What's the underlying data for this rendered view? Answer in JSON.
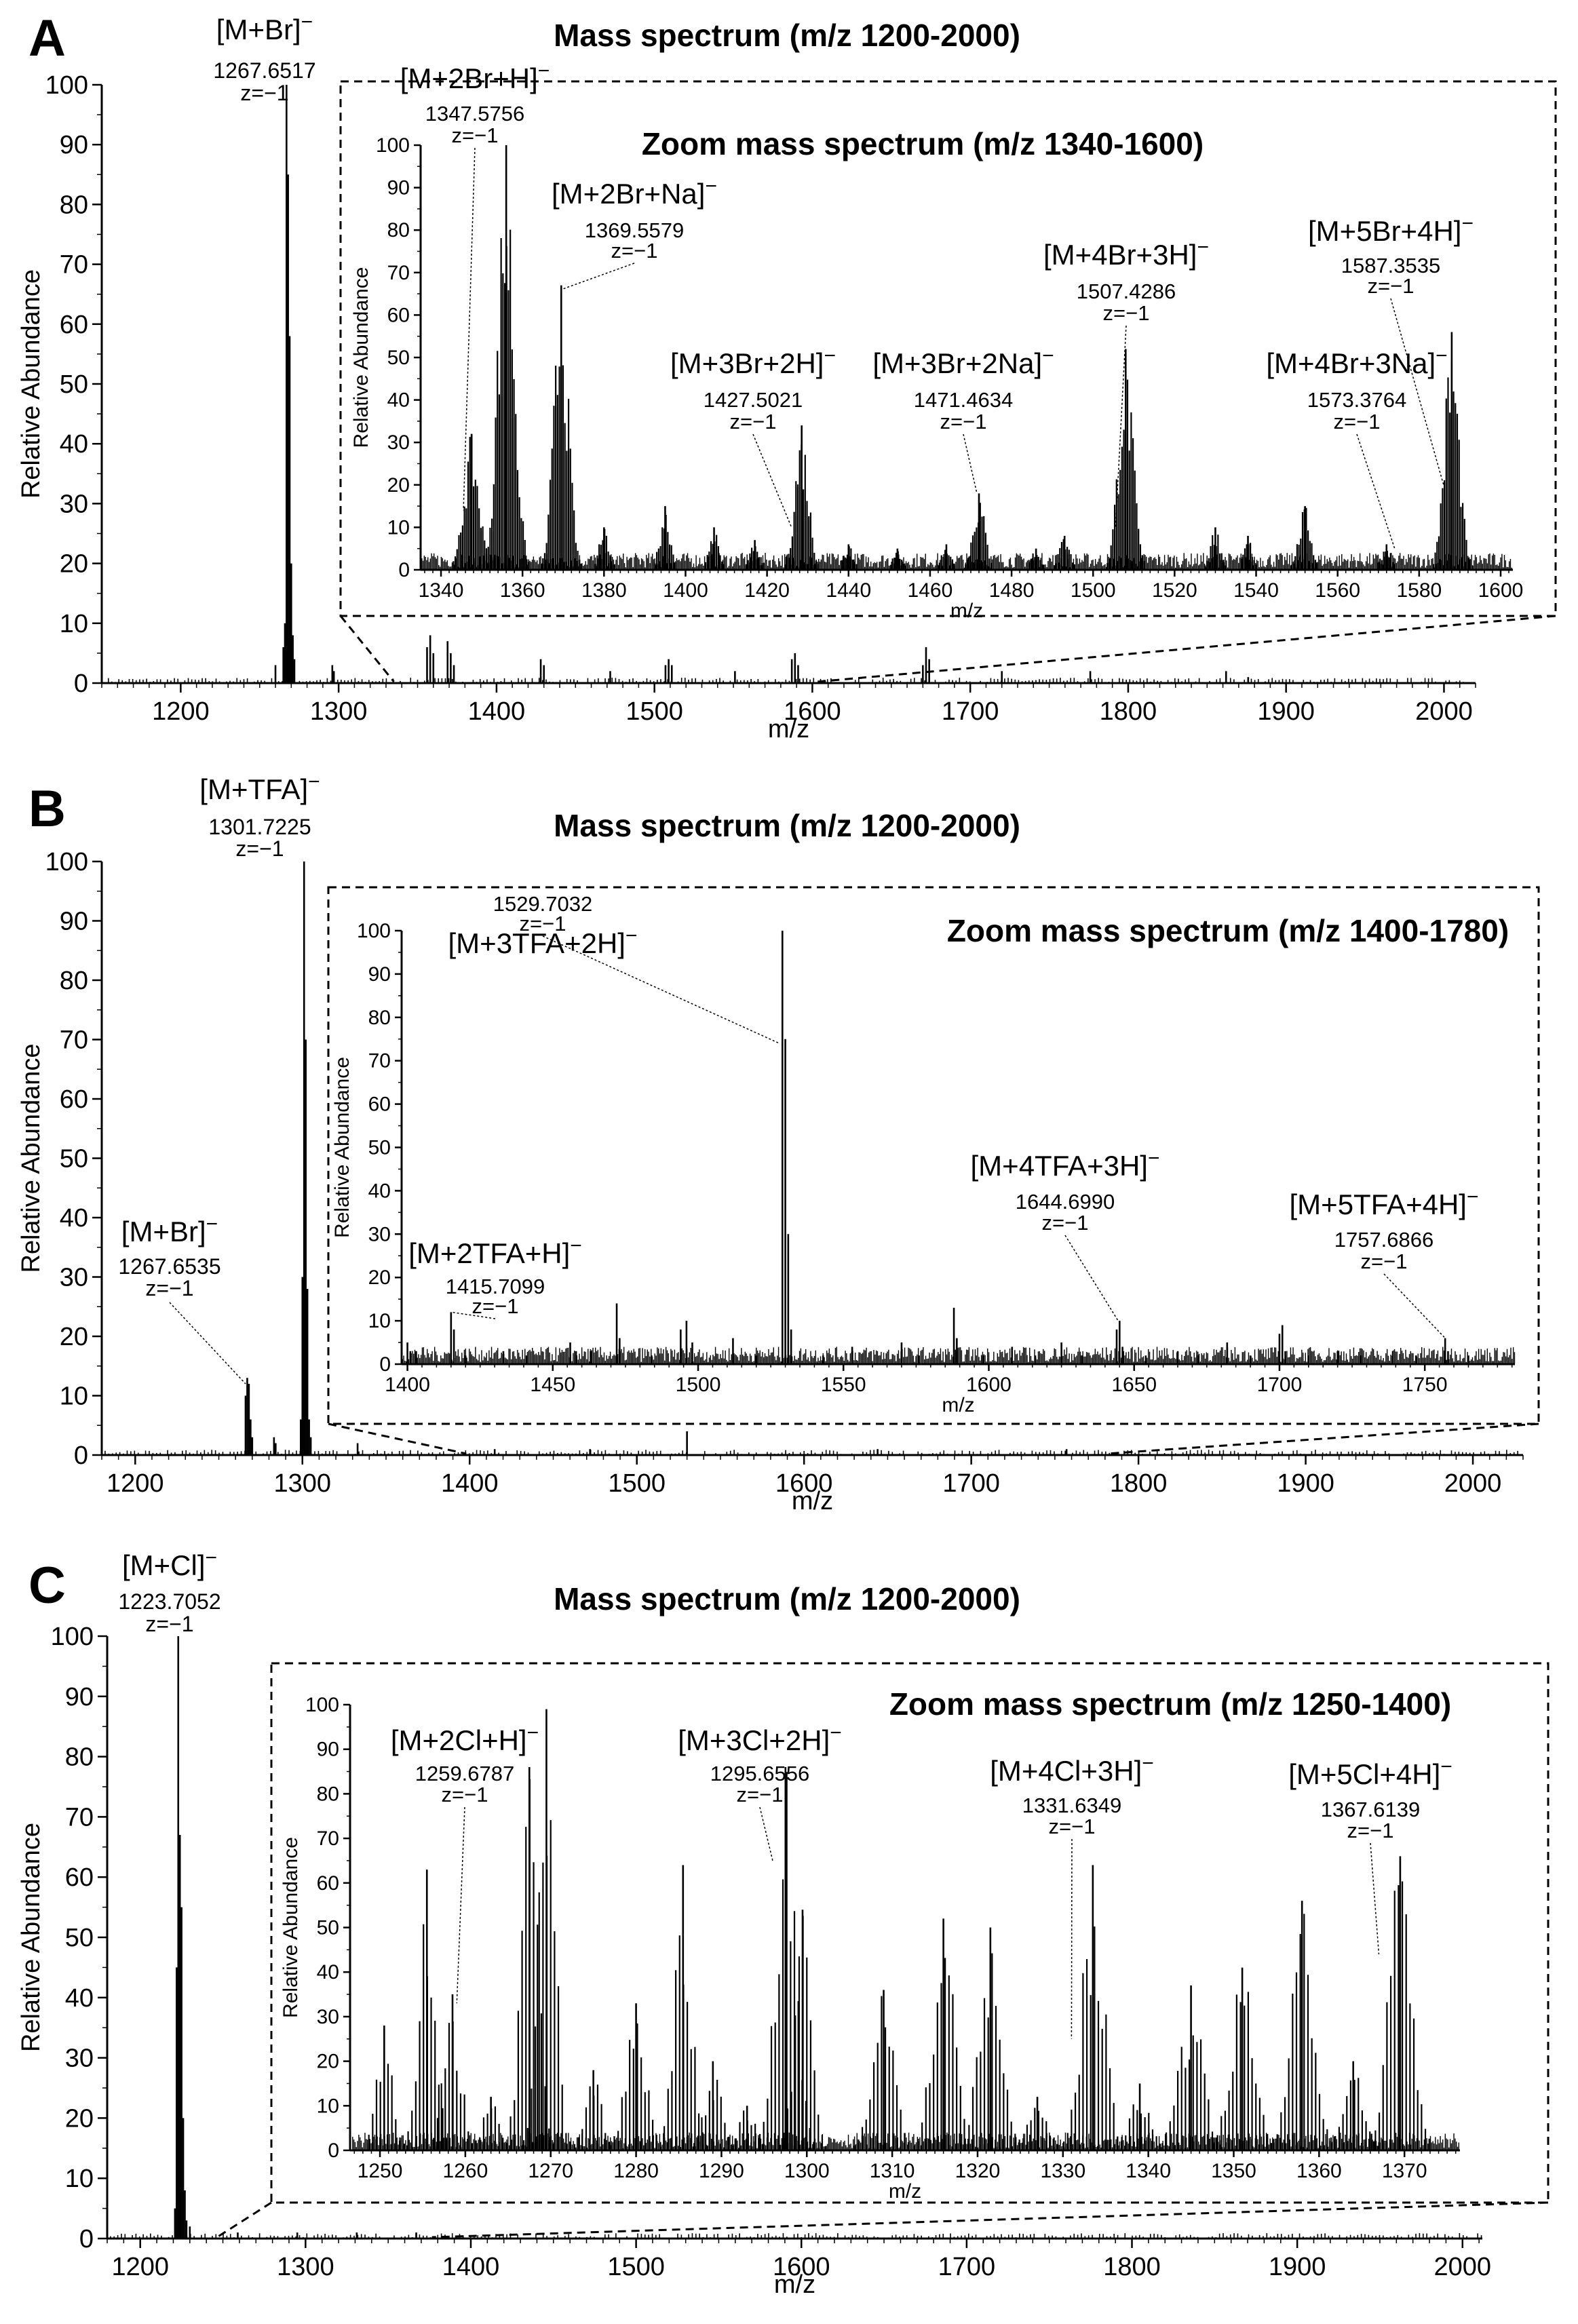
{
  "panels": [
    {
      "letter": "A",
      "chart_data": {
        "type": "line",
        "title": "Mass spectrum (m/z 1200-2000)",
        "xlabel": "m/z",
        "ylabel": "Relative Abundance",
        "xlim": [
          1150,
          2020
        ],
        "ylim": [
          0,
          100
        ],
        "xticks": [
          1200,
          1300,
          1400,
          1500,
          1600,
          1700,
          1800,
          1900,
          2000
        ],
        "yticks": [
          0,
          10,
          20,
          30,
          40,
          50,
          60,
          70,
          80,
          90,
          100
        ],
        "peaks": [
          [
            1260,
            3
          ],
          [
            1265,
            6
          ],
          [
            1266,
            10
          ],
          [
            1267,
            100
          ],
          [
            1268,
            85
          ],
          [
            1269,
            58
          ],
          [
            1270,
            20
          ],
          [
            1271,
            8
          ],
          [
            1272,
            4
          ],
          [
            1296,
            3
          ],
          [
            1297,
            2
          ],
          [
            1356,
            6
          ],
          [
            1358,
            8
          ],
          [
            1360,
            5
          ],
          [
            1369,
            7
          ],
          [
            1371,
            5
          ],
          [
            1373,
            3
          ],
          [
            1428,
            4
          ],
          [
            1430,
            3
          ],
          [
            1472,
            2
          ],
          [
            1507,
            3
          ],
          [
            1509,
            4
          ],
          [
            1511,
            3
          ],
          [
            1551,
            2
          ],
          [
            1587,
            4
          ],
          [
            1589,
            5
          ],
          [
            1591,
            3
          ],
          [
            1670,
            3
          ],
          [
            1672,
            6
          ],
          [
            1674,
            4
          ],
          [
            1720,
            2
          ],
          [
            1776,
            2
          ],
          [
            1862,
            2
          ],
          [
            1876,
            1
          ]
        ],
        "annotations": [
          {
            "ion": "[M+Br]",
            "mz": "1267.6517",
            "z": "z=−1",
            "peak": [
              1267,
              100
            ]
          }
        ],
        "zoom": {
          "title": "Zoom mass spectrum (m/z 1340-1600)",
          "xlabel": "m/z",
          "ylabel": "Relative Abundance",
          "xlim": [
            1335,
            1603
          ],
          "ylim": [
            0,
            100
          ],
          "xticks": [
            1340,
            1360,
            1380,
            1400,
            1420,
            1440,
            1460,
            1480,
            1500,
            1520,
            1540,
            1560,
            1580,
            1600
          ],
          "yticks": [
            0,
            10,
            20,
            30,
            40,
            50,
            60,
            70,
            80,
            90,
            100
          ],
          "clusters": [
            [
              1347.5,
              32,
              1.9
            ],
            [
              1356,
              100,
              2.0
            ],
            [
              1369.5,
              67,
              1.8
            ],
            [
              1428.5,
              34,
              1.7
            ],
            [
              1472,
              18,
              1.5
            ],
            [
              1508,
              52,
              1.8
            ],
            [
              1552,
              15,
              1.5
            ],
            [
              1588,
              56,
              1.8
            ],
            [
              1395,
              15,
              1.3
            ],
            [
              1407,
              10,
              1.2
            ],
            [
              1380,
              10,
              1.2
            ],
            [
              1417,
              7,
              1.2
            ],
            [
              1464,
              6,
              1.2
            ],
            [
              1493,
              8,
              1.3
            ],
            [
              1530,
              10,
              1.3
            ],
            [
              1572,
              6,
              1.3
            ],
            [
              1440,
              6,
              1.2
            ],
            [
              1452,
              5,
              1.2
            ],
            [
              1486,
              5,
              1.2
            ],
            [
              1538,
              8,
              1.2
            ]
          ],
          "annotations": [
            {
              "ion": "[M+2Br+H]",
              "mz": "1347.5756",
              "z": "z=−1",
              "peak": [
                1345.5,
                14
              ]
            },
            {
              "ion": "[M+2Br+Na]",
              "mz": "1369.5579",
              "z": "z=−1",
              "peak": [
                1369.5,
                66
              ]
            },
            {
              "ion": "[M+3Br+2H]",
              "mz": "1427.5021",
              "z": "z=−1",
              "peak": [
                1426,
                10
              ]
            },
            {
              "ion": "[M+3Br+2Na]",
              "mz": "1471.4634",
              "z": "z=−1",
              "peak": [
                1471.5,
                18
              ]
            },
            {
              "ion": "[M+4Br+3H]",
              "mz": "1507.4286",
              "z": "z=−1",
              "peak": [
                1505.5,
                10
              ]
            },
            {
              "ion": "[M+4Br+3Na]",
              "mz": "1573.3764",
              "z": "z=−1",
              "peak": [
                1574,
                5
              ]
            },
            {
              "ion": "[M+5Br+4H]",
              "mz": "1587.3535",
              "z": "z=−1",
              "peak": [
                1586,
                20
              ]
            }
          ]
        }
      }
    },
    {
      "letter": "B",
      "chart_data": {
        "type": "line",
        "title": "Mass spectrum (m/z 1200-2000)",
        "xlabel": "m/z",
        "ylabel": "Relative Abundance",
        "xlim": [
          1180,
          2030
        ],
        "ylim": [
          0,
          100
        ],
        "xticks": [
          1200,
          1300,
          1400,
          1500,
          1600,
          1700,
          1800,
          1900,
          2000
        ],
        "yticks": [
          0,
          10,
          20,
          30,
          40,
          50,
          60,
          70,
          80,
          90,
          100
        ],
        "peaks": [
          [
            1266,
            10
          ],
          [
            1267,
            13
          ],
          [
            1268,
            12
          ],
          [
            1269,
            6
          ],
          [
            1270,
            3
          ],
          [
            1283,
            3
          ],
          [
            1284,
            2
          ],
          [
            1299,
            6
          ],
          [
            1300,
            30
          ],
          [
            1301,
            100
          ],
          [
            1302,
            70
          ],
          [
            1303,
            28
          ],
          [
            1304,
            6
          ],
          [
            1305,
            3
          ],
          [
            1333,
            2
          ],
          [
            1530,
            4
          ],
          [
            1415,
            1
          ],
          [
            1472,
            1
          ],
          [
            1644,
            1
          ],
          [
            1757,
            1
          ]
        ],
        "annotations": [
          {
            "ion": "[M+TFA]",
            "mz": "1301.7225",
            "z": "z=−1",
            "peak": [
              1301,
              100
            ]
          },
          {
            "ion": "[M+Br]",
            "mz": "1267.6535",
            "z": "z=−1",
            "peak": [
              1266,
              12
            ]
          }
        ],
        "zoom": {
          "title": "Zoom mass spectrum (m/z 1400-1780)",
          "xlabel": "m/z",
          "ylabel": "Relative Abundance",
          "xlim": [
            1398,
            1781
          ],
          "ylim": [
            0,
            100
          ],
          "xticks": [
            1400,
            1450,
            1500,
            1550,
            1600,
            1650,
            1700,
            1750
          ],
          "yticks": [
            0,
            10,
            20,
            30,
            40,
            50,
            60,
            70,
            80,
            90,
            100
          ],
          "peaks": [
            [
              1400,
              5
            ],
            [
              1401,
              3
            ],
            [
              1415,
              12
            ],
            [
              1416,
              8
            ],
            [
              1433,
              3
            ],
            [
              1456,
              5
            ],
            [
              1458,
              3
            ],
            [
              1472,
              14
            ],
            [
              1473,
              6
            ],
            [
              1494,
              8
            ],
            [
              1496,
              10
            ],
            [
              1498,
              5
            ],
            [
              1512,
              6
            ],
            [
              1529,
              100
            ],
            [
              1530,
              75
            ],
            [
              1531,
              30
            ],
            [
              1532,
              8
            ],
            [
              1553,
              4
            ],
            [
              1570,
              5
            ],
            [
              1588,
              13
            ],
            [
              1589,
              6
            ],
            [
              1608,
              4
            ],
            [
              1625,
              5
            ],
            [
              1644,
              8
            ],
            [
              1645,
              10
            ],
            [
              1646,
              4
            ],
            [
              1665,
              3
            ],
            [
              1682,
              5
            ],
            [
              1700,
              7
            ],
            [
              1701,
              9
            ],
            [
              1702,
              3
            ],
            [
              1720,
              3
            ],
            [
              1739,
              3
            ],
            [
              1757,
              6
            ],
            [
              1758,
              3
            ],
            [
              1441,
              2
            ],
            [
              1484,
              2
            ],
            [
              1543,
              2
            ],
            [
              1598,
              2
            ],
            [
              1632,
              2
            ],
            [
              1672,
              2
            ],
            [
              1690,
              2
            ],
            [
              1728,
              2
            ],
            [
              1765,
              2
            ],
            [
              1403,
              3
            ],
            [
              1420,
              2
            ],
            [
              1463,
              3
            ],
            [
              1520,
              2
            ],
            [
              1576,
              2
            ],
            [
              1616,
              2
            ],
            [
              1654,
              2
            ],
            [
              1710,
              2
            ],
            [
              1747,
              2
            ]
          ],
          "annotations": [
            {
              "ion": "[M+3TFA+2H]",
              "mz": "1529.7032",
              "z": "z=−1",
              "peak": [
                1528,
                74
              ]
            },
            {
              "ion": "[M+2TFA+H]",
              "mz": "1415.7099",
              "z": "z=−1",
              "peak": [
                1415,
                12
              ]
            },
            {
              "ion": "[M+4TFA+3H]",
              "mz": "1644.6990",
              "z": "z=−1",
              "peak": [
                1644.5,
                10
              ]
            },
            {
              "ion": "[M+5TFA+4H]",
              "mz": "1757.6866",
              "z": "z=−1",
              "peak": [
                1757,
                6
              ]
            }
          ]
        }
      }
    },
    {
      "letter": "C",
      "chart_data": {
        "type": "line",
        "title": "Mass spectrum (m/z 1200-2000)",
        "xlabel": "m/z",
        "ylabel": "Relative Abundance",
        "xlim": [
          1180,
          2012
        ],
        "ylim": [
          0,
          100
        ],
        "xticks": [
          1200,
          1300,
          1400,
          1500,
          1600,
          1700,
          1800,
          1900,
          2000
        ],
        "yticks": [
          0,
          10,
          20,
          30,
          40,
          50,
          60,
          70,
          80,
          90,
          100
        ],
        "peaks": [
          [
            1221,
            5
          ],
          [
            1222,
            45
          ],
          [
            1223,
            100
          ],
          [
            1224,
            67
          ],
          [
            1225,
            55
          ],
          [
            1226,
            20
          ],
          [
            1227,
            8
          ],
          [
            1228,
            3
          ],
          [
            1230,
            2
          ],
          [
            1259,
            1
          ],
          [
            1295,
            1
          ],
          [
            1331,
            1
          ],
          [
            1367,
            1
          ]
        ],
        "annotations": [
          {
            "ion": "[M+Cl]",
            "mz": "1223.7052",
            "z": "z=−1",
            "peak": [
              1223,
              100
            ]
          }
        ],
        "zoom": {
          "title": "Zoom mass spectrum (m/z 1250-1400)",
          "xlabel": "m/z",
          "ylabel": "Relative Abundance",
          "xlim": [
            1246.5,
            1376.5
          ],
          "ylim": [
            0,
            100
          ],
          "xticks": [
            1250,
            1260,
            1270,
            1280,
            1290,
            1300,
            1310,
            1320,
            1330,
            1340,
            1350,
            1360,
            1370
          ],
          "yticks": [
            0,
            10,
            20,
            30,
            40,
            50,
            60,
            70,
            80,
            90,
            100
          ],
          "clusters": [
            [
              1250.5,
              28,
              0.9
            ],
            [
              1255.5,
              63,
              1.0
            ],
            [
              1258.5,
              35,
              1.0
            ],
            [
              1267.5,
              86,
              1.0
            ],
            [
              1269.5,
              99,
              1.0
            ],
            [
              1280,
              33,
              1.2
            ],
            [
              1285.5,
              64,
              1.0
            ],
            [
              1289,
              20,
              1.0
            ],
            [
              1297.5,
              86,
              1.2
            ],
            [
              1309,
              36,
              1.3
            ],
            [
              1316,
              52,
              1.3
            ],
            [
              1321.5,
              50,
              1.3
            ],
            [
              1333.5,
              64,
              1.3
            ],
            [
              1345,
              37,
              1.4
            ],
            [
              1351,
              41,
              1.4
            ],
            [
              1358,
              56,
              1.4
            ],
            [
              1369.5,
              66,
              1.4
            ],
            [
              1299.5,
              54,
              1.0
            ],
            [
              1293,
              10,
              1.0
            ],
            [
              1275,
              18,
              1.0
            ],
            [
              1263,
              12,
              1.0
            ],
            [
              1327,
              12,
              1.2
            ],
            [
              1339,
              15,
              1.2
            ],
            [
              1364,
              20,
              1.2
            ]
          ],
          "annotations": [
            {
              "ion": "[M+2Cl+H]",
              "mz": "1259.6787",
              "z": "z=−1",
              "peak": [
                1259,
                33
              ]
            },
            {
              "ion": "[M+3Cl+2H]",
              "mz": "1295.6556",
              "z": "z=−1",
              "peak": [
                1296,
                65
              ]
            },
            {
              "ion": "[M+4Cl+3H]",
              "mz": "1331.6349",
              "z": "z=−1",
              "peak": [
                1331,
                25
              ]
            },
            {
              "ion": "[M+5Cl+4H]",
              "mz": "1367.6139",
              "z": "z=−1",
              "peak": [
                1367,
                44
              ]
            }
          ]
        }
      }
    }
  ]
}
